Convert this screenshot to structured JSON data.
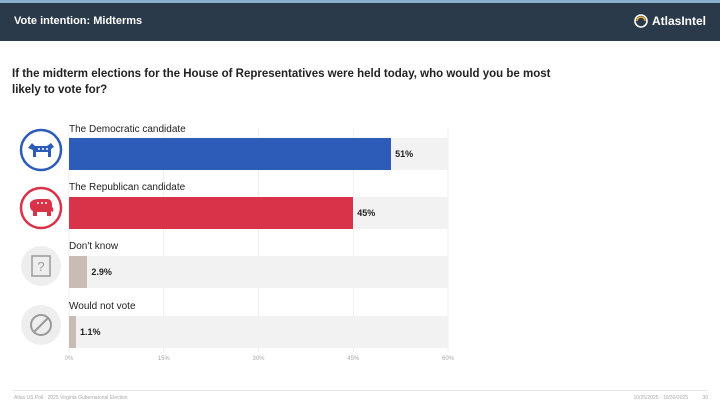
{
  "header": {
    "title": "Vote intention: Midterms",
    "brand": "AtlasIntel"
  },
  "question": "If the midterm elections for the House of Representatives were held today, who would you be most likely to vote for?",
  "chart_data": {
    "type": "bar",
    "orientation": "horizontal",
    "categories": [
      "The Democratic candidate",
      "The Republican candidate",
      "Don't know",
      "Would not vote"
    ],
    "values": [
      51,
      45,
      2.9,
      1.1
    ],
    "value_labels": [
      "51%",
      "45%",
      "2.9%",
      "1.1%"
    ],
    "colors": [
      "#2c5bb8",
      "#d9334a",
      "#c8bcb4",
      "#c8bcb4"
    ],
    "icons": [
      "democrat-donkey-icon",
      "republican-elephant-icon",
      "question-mark-icon",
      "no-vote-icon"
    ],
    "xlim": [
      0,
      60
    ],
    "ticks": [
      0,
      15,
      30,
      45,
      60
    ],
    "tick_labels": [
      "0%",
      "15%",
      "30%",
      "45%",
      "60%"
    ],
    "title": "",
    "xlabel": "",
    "ylabel": "",
    "grid": true
  },
  "footer": {
    "source": "Atlas US Poll · 2025 Virginia Gubernatorial Election",
    "dates": "10/25/2025 - 10/30/2025",
    "page": "30"
  }
}
